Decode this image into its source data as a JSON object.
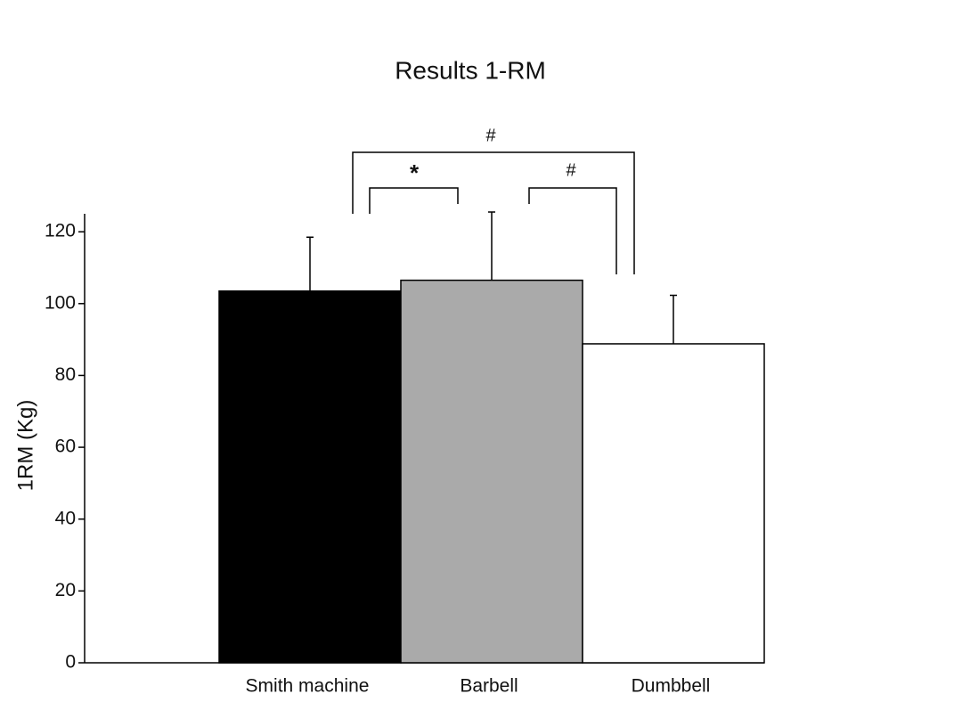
{
  "chart_data": {
    "type": "bar",
    "title": "Results 1-RM",
    "y_label": "1RM (Kg)",
    "categories": [
      "Smith machine",
      "Barbell",
      "Dumbbell"
    ],
    "values": [
      103.5,
      106.5,
      88.8
    ],
    "errors": [
      15,
      19,
      13.5
    ],
    "colors": [
      "#000000",
      "#aaaaaa",
      "#ffffff"
    ],
    "ylim": [
      0,
      125
    ],
    "yticks": [
      0,
      20,
      40,
      60,
      80,
      100,
      120
    ],
    "annotations": [
      "#",
      "*",
      "#"
    ]
  }
}
